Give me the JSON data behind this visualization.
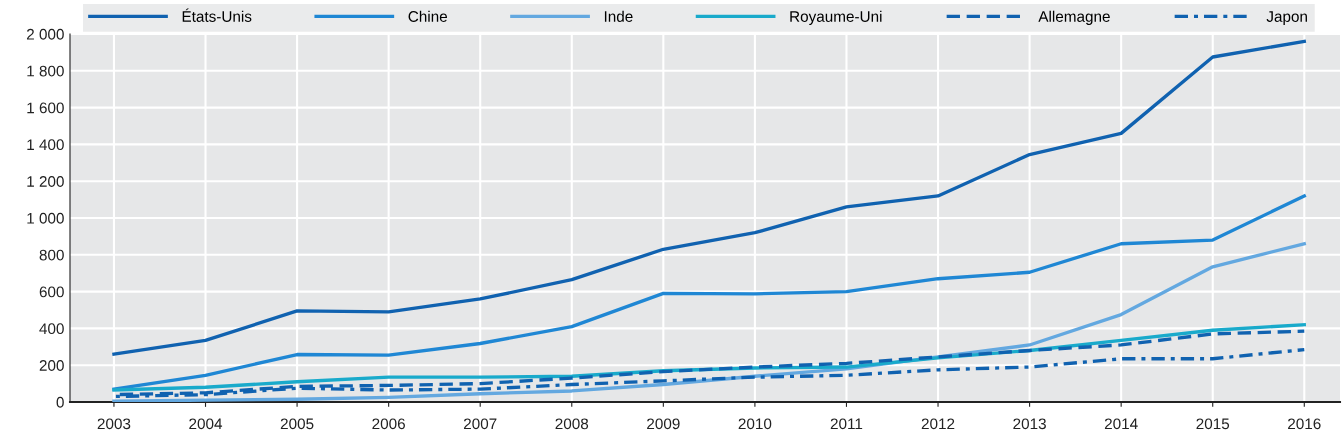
{
  "chart_data": {
    "type": "line",
    "x": [
      2003,
      2004,
      2005,
      2006,
      2007,
      2008,
      2009,
      2010,
      2011,
      2012,
      2013,
      2014,
      2015,
      2016
    ],
    "series": [
      {
        "name": "États-Unis",
        "color": "#1062b0",
        "line_style": "solid",
        "values": [
          260,
          335,
          495,
          490,
          560,
          665,
          830,
          920,
          1060,
          1120,
          1345,
          1460,
          1875,
          1960
        ]
      },
      {
        "name": "Chine",
        "color": "#1f87d4",
        "line_style": "solid",
        "values": [
          70,
          145,
          258,
          255,
          318,
          410,
          590,
          588,
          600,
          670,
          705,
          860,
          880,
          1120
        ]
      },
      {
        "name": "Inde",
        "color": "#63a8e0",
        "line_style": "solid",
        "values": [
          5,
          10,
          15,
          25,
          45,
          60,
          95,
          140,
          180,
          245,
          310,
          475,
          735,
          860
        ]
      },
      {
        "name": "Royaume-Uni",
        "color": "#19aacb",
        "line_style": "solid",
        "values": [
          65,
          80,
          110,
          135,
          135,
          140,
          170,
          185,
          190,
          240,
          280,
          335,
          390,
          420
        ]
      },
      {
        "name": "Allemagne",
        "color": "#1062b0",
        "line_style": "dashed",
        "values": [
          40,
          50,
          85,
          90,
          100,
          130,
          165,
          190,
          210,
          245,
          280,
          310,
          370,
          385
        ]
      },
      {
        "name": "Japon",
        "color": "#1062b0",
        "line_style": "dashdot",
        "values": [
          30,
          40,
          75,
          65,
          70,
          95,
          115,
          135,
          145,
          175,
          190,
          235,
          235,
          285
        ]
      }
    ],
    "xlim": [
      2002.52,
      2016.39
    ],
    "xticks": [
      2003,
      2004,
      2005,
      2006,
      2007,
      2008,
      2009,
      2010,
      2011,
      2012,
      2013,
      2014,
      2015,
      2016
    ],
    "ylim": [
      0,
      2000
    ],
    "yticks": [
      0,
      200,
      400,
      600,
      800,
      {
        "value": 1000,
        "label": "1 000"
      },
      {
        "value": 1200,
        "label": "1 200"
      },
      {
        "value": 1400,
        "label": "1 400"
      },
      {
        "value": 1600,
        "label": "1 600"
      },
      {
        "value": 1800,
        "label": "1 800"
      },
      {
        "value": 2000,
        "label": "2 000"
      }
    ],
    "grid": true,
    "legend": "top",
    "marker": "none"
  }
}
